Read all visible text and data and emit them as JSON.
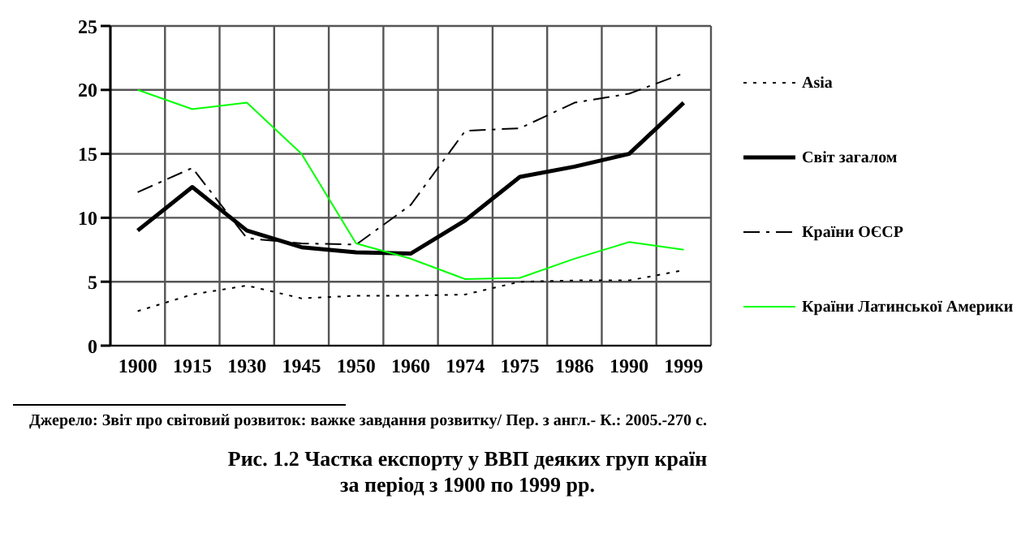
{
  "chart_data": {
    "type": "line",
    "title": "Рис. 1.2 Частка експорту у ВВП деяких груп країн\nза період з 1900 по 1999 рр.",
    "annotations": [
      "Джерело: Звіт про світовий розвиток: важке завдання розвитку/ Пер. з англ.- К.: 2005.-270  с."
    ],
    "categories": [
      "1900",
      "1915",
      "1930",
      "1945",
      "1950",
      "1960",
      "1974",
      "1975",
      "1986",
      "1990",
      "1999"
    ],
    "series": [
      {
        "name": "Asia",
        "color": "#000000",
        "line_style": "dotted",
        "values": [
          2.7,
          4,
          4.7,
          3.7,
          3.9,
          3.9,
          4,
          5,
          5.1,
          5.1,
          5.9
        ]
      },
      {
        "name": "Світ загалом",
        "color": "#000000",
        "line_style": "solid",
        "values": [
          9,
          12.4,
          9,
          7.7,
          7.3,
          7.2,
          9.8,
          13.2,
          14,
          15,
          19
        ]
      },
      {
        "name": "Країни ОЄСР",
        "color": "#000000",
        "line_style": "dashdot",
        "values": [
          12,
          13.9,
          8.4,
          8,
          7.9,
          11,
          16.8,
          17,
          19,
          19.7,
          21.3
        ]
      },
      {
        "name": "Країни Латинської Америки",
        "color": "#00ff00",
        "line_style": "solid",
        "values": [
          20,
          18.5,
          19,
          15,
          8,
          6.8,
          5.2,
          5.3,
          6.8,
          8.1,
          7.5
        ]
      }
    ],
    "ylim": [
      0,
      25
    ],
    "yticks": [
      0,
      5,
      10,
      15,
      20,
      25
    ],
    "grid": true,
    "legend": "right",
    "marker": "none"
  }
}
